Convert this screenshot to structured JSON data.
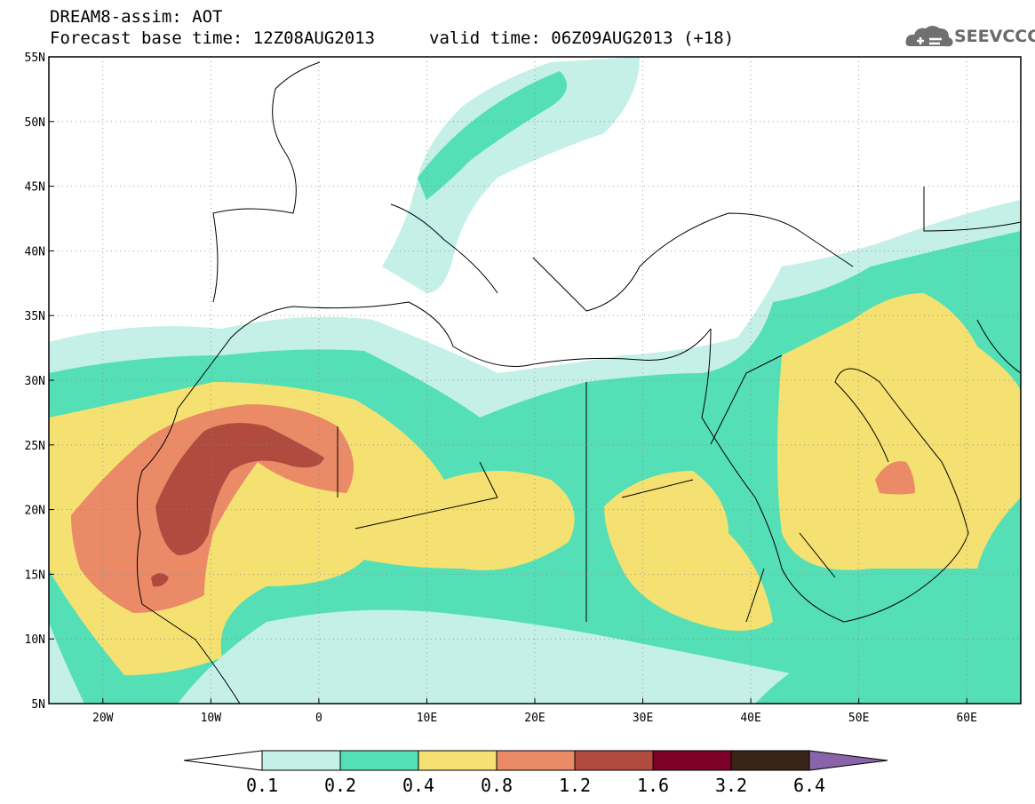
{
  "header": {
    "line1": "DREAM8-assim: AOT",
    "line2": "Forecast base time: 12Z08AUG2013",
    "line3": "valid time: 06Z09AUG2013 (+18)"
  },
  "logo": {
    "text": "SEEVCCC",
    "icon": "cloud-logo-icon"
  },
  "map": {
    "lon_range": [
      -25,
      65
    ],
    "lat_range": [
      5,
      55
    ],
    "lat_ticks": [
      "5N",
      "10N",
      "15N",
      "20N",
      "25N",
      "30N",
      "35N",
      "40N",
      "45N",
      "50N",
      "55N"
    ],
    "lon_ticks": [
      "20W",
      "10W",
      "0",
      "10E",
      "20E",
      "30E",
      "40E",
      "50E",
      "60E"
    ],
    "gridlines": true
  },
  "colorbar": {
    "levels": [
      "0.1",
      "0.2",
      "0.4",
      "0.8",
      "1.2",
      "1.6",
      "3.2",
      "6.4"
    ],
    "colors": [
      "#c4f0e8",
      "#55dfb6",
      "#f5e171",
      "#ea8a66",
      "#b14b40",
      "#7d0028",
      "#3a2418",
      "#8a64a8"
    ],
    "under_color": "#ffffff",
    "over_color": "#8a64a8"
  }
}
